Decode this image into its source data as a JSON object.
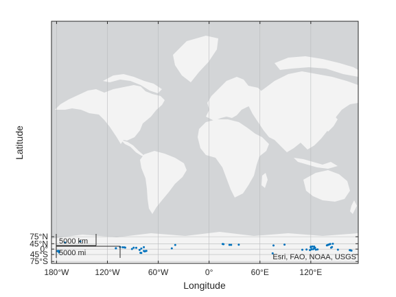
{
  "map": {
    "xlabel": "Longitude",
    "ylabel": "Latitude",
    "attribution": "Esri, FAO, NOAA, USGS",
    "lon_ticks": [
      {
        "value": -180,
        "label": "180°W"
      },
      {
        "value": -120,
        "label": "120°W"
      },
      {
        "value": -60,
        "label": "60°W"
      },
      {
        "value": 0,
        "label": "0°"
      },
      {
        "value": 60,
        "label": "60°E"
      },
      {
        "value": 120,
        "label": "120°E"
      }
    ],
    "lat_ticks": [
      {
        "value": 75,
        "label": "75°N"
      },
      {
        "value": 45,
        "label": "45°N"
      },
      {
        "value": 0,
        "label": "0°"
      },
      {
        "value": -45,
        "label": "45°S"
      },
      {
        "value": -75,
        "label": "75°S"
      }
    ],
    "scalebar": {
      "km_label": "5000 km",
      "mi_label": "5000 mi"
    },
    "colors": {
      "ocean": "#d3d5d7",
      "land": "#f3f3f3",
      "grid": "#b8babc",
      "marker": "#0072bd",
      "frame": "#262626"
    }
  },
  "chart_data": {
    "type": "scatter",
    "xlabel": "Longitude",
    "ylabel": "Latitude",
    "xlim": [
      -186,
      176
    ],
    "ylim": [
      -79,
      90
    ],
    "grid": true,
    "marker_color": "#0072bd",
    "points": [
      {
        "x": -152,
        "y": 58
      },
      {
        "x": -170,
        "y": 52
      },
      {
        "x": -178,
        "y": -16
      },
      {
        "x": -177,
        "y": -18
      },
      {
        "x": -179,
        "y": -19
      },
      {
        "x": -177,
        "y": -30
      },
      {
        "x": -105,
        "y": 19
      },
      {
        "x": -102,
        "y": 17
      },
      {
        "x": -100,
        "y": 16
      },
      {
        "x": -99,
        "y": 14
      },
      {
        "x": -110,
        "y": 8
      },
      {
        "x": -110,
        "y": 7
      },
      {
        "x": -89,
        "y": 13
      },
      {
        "x": -86,
        "y": 12
      },
      {
        "x": -91,
        "y": 1
      },
      {
        "x": -80,
        "y": 5
      },
      {
        "x": -77,
        "y": 18
      },
      {
        "x": -82,
        "y": -8
      },
      {
        "x": -77,
        "y": -17
      },
      {
        "x": -74,
        "y": -16
      },
      {
        "x": -75,
        "y": -18
      },
      {
        "x": -76,
        "y": -21
      },
      {
        "x": -81,
        "y": -33
      },
      {
        "x": -80,
        "y": -34
      },
      {
        "x": -40,
        "y": 36
      },
      {
        "x": -44,
        "y": 7
      },
      {
        "x": 16,
        "y": 43
      },
      {
        "x": 17,
        "y": 42
      },
      {
        "x": 24,
        "y": 37
      },
      {
        "x": 26,
        "y": 37
      },
      {
        "x": 35,
        "y": 38
      },
      {
        "x": 76,
        "y": 32
      },
      {
        "x": 89,
        "y": 39
      },
      {
        "x": 75,
        "y": -37
      },
      {
        "x": 120,
        "y": 22
      },
      {
        "x": 122,
        "y": 24
      },
      {
        "x": 124,
        "y": 23
      },
      {
        "x": 120,
        "y": 15
      },
      {
        "x": 124,
        "y": 6
      },
      {
        "x": 125,
        "y": 12
      },
      {
        "x": 121,
        "y": -2
      },
      {
        "x": 123,
        "y": 0
      },
      {
        "x": 126,
        "y": -5
      },
      {
        "x": 128,
        "y": -3
      },
      {
        "x": 110,
        "y": -6
      },
      {
        "x": 115,
        "y": -4
      },
      {
        "x": 119,
        "y": -9
      },
      {
        "x": 140,
        "y": 36
      },
      {
        "x": 141,
        "y": 38
      },
      {
        "x": 142,
        "y": 41
      },
      {
        "x": 143,
        "y": 43
      },
      {
        "x": 139,
        "y": 33
      },
      {
        "x": 146,
        "y": 45
      },
      {
        "x": 145,
        "y": 19
      },
      {
        "x": 144,
        "y": 13
      },
      {
        "x": 152,
        "y": -5
      },
      {
        "x": 166,
        "y": -10
      },
      {
        "x": 167,
        "y": -12
      },
      {
        "x": 168,
        "y": -14
      }
    ]
  }
}
